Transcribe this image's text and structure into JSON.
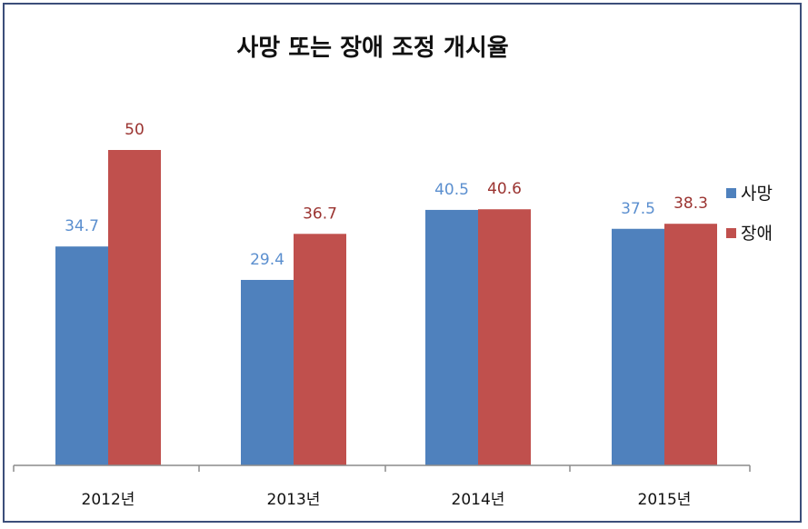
{
  "chart_data": {
    "type": "bar",
    "title": "사망 또는 장애 조정 개시율",
    "categories": [
      "2012년",
      "2013년",
      "2014년",
      "2015년"
    ],
    "series": [
      {
        "name": "사망",
        "values": [
          34.7,
          29.4,
          40.5,
          37.5
        ],
        "color": "#4f81bd",
        "label_color": "#5b8fcf"
      },
      {
        "name": "장애",
        "values": [
          50,
          36.7,
          40.6,
          38.3
        ],
        "color": "#c0504d",
        "label_color": "#9b3431"
      }
    ],
    "data_labels": [
      [
        "34.7",
        "29.4",
        "40.5",
        "37.5"
      ],
      [
        "50",
        "36.7",
        "40.6",
        "38.3"
      ]
    ],
    "xlabel": "",
    "ylabel": "",
    "ylim": [
      0,
      60
    ],
    "grid": false,
    "legend": "right"
  }
}
